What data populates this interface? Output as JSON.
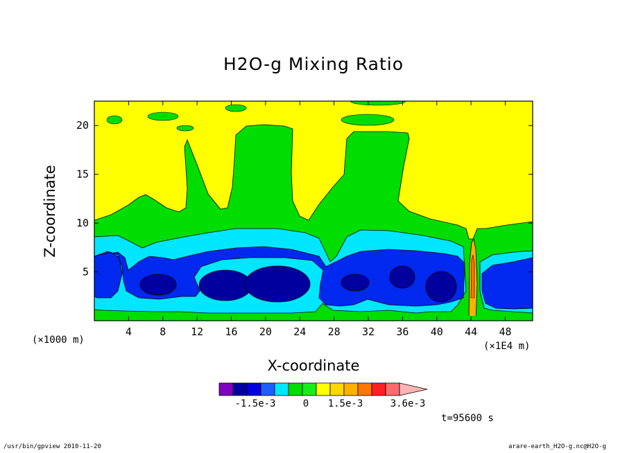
{
  "chart_data": {
    "type": "heatmap",
    "title": "H2O-g Mixing Ratio",
    "xlabel": "X-coordinate",
    "ylabel": "Z-coordinate",
    "x_unit_left": "(×1000 m)",
    "x_unit_right": "(×1E4 m)",
    "x_ticks": [
      4,
      8,
      12,
      16,
      20,
      24,
      28,
      32,
      36,
      40,
      44,
      48
    ],
    "y_ticks": [
      5,
      10,
      15,
      20
    ],
    "xlim": [
      0,
      51.2
    ],
    "ylim": [
      0,
      22.5
    ],
    "time_label": "t=95600 s",
    "colorbar": {
      "colors": [
        "#7f00bf",
        "#00009f",
        "#0000df",
        "#1e5eff",
        "#00e6ff",
        "#00dd00",
        "#17ee17",
        "#ffff00",
        "#ffd700",
        "#ffb000",
        "#ff7700",
        "#ff2020",
        "#ff6a6a",
        "#ffb4b4"
      ],
      "tick_labels": [
        "-1.5e-3",
        "0",
        "1.5e-3",
        "3.6e-3"
      ]
    },
    "levels": [
      "deep-blue",
      "blue",
      "cyan",
      "green",
      "yellow",
      "orange"
    ]
  },
  "footer": {
    "left": "/usr/bin/gpview   2010-11-20",
    "right": "arare-earth_H2O-g.nc@H2O-g"
  }
}
